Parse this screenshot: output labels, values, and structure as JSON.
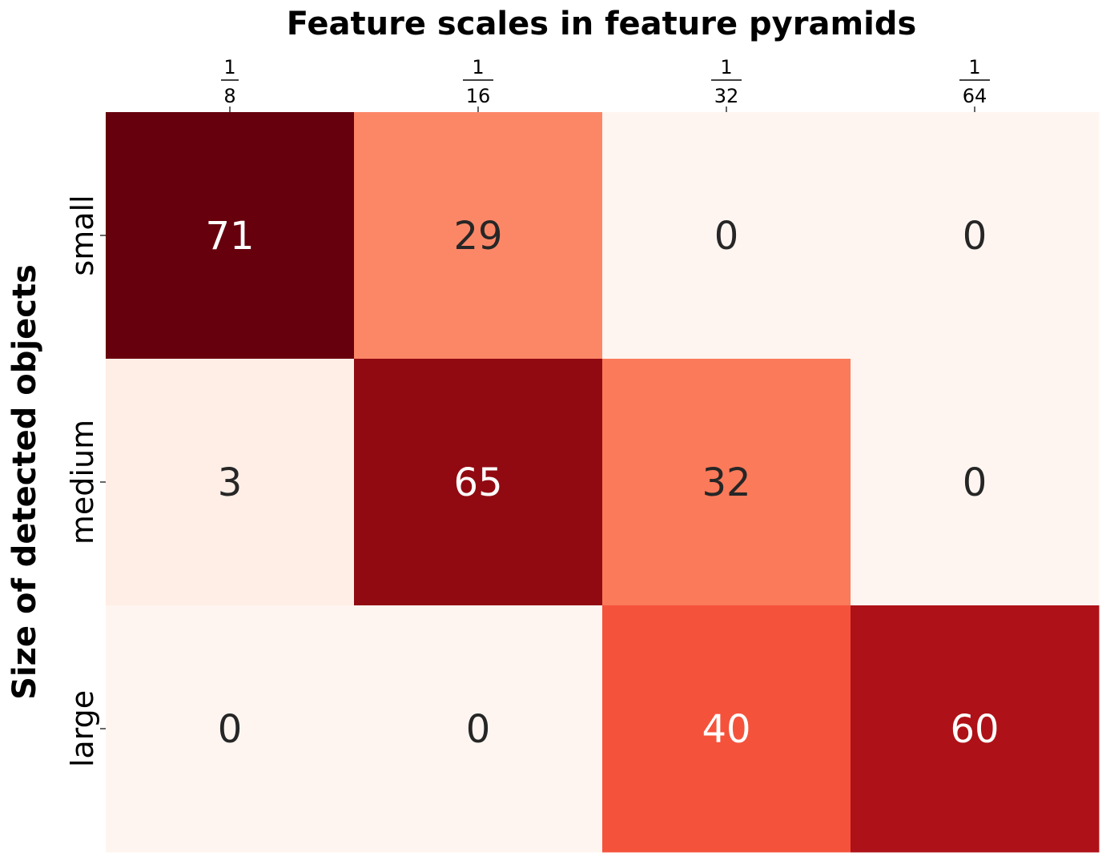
{
  "chart_data": {
    "type": "heatmap",
    "title": "Feature scales in feature pyramids",
    "ylabel": "Size of detected objects",
    "xlabel": "",
    "x_tick_labels": [
      {
        "numerator": "1",
        "denominator": "8"
      },
      {
        "numerator": "1",
        "denominator": "16"
      },
      {
        "numerator": "1",
        "denominator": "32"
      },
      {
        "numerator": "1",
        "denominator": "64"
      }
    ],
    "y_tick_labels": [
      "small",
      "medium",
      "large"
    ],
    "values": [
      [
        71,
        29,
        0,
        0
      ],
      [
        3,
        65,
        32,
        0
      ],
      [
        0,
        0,
        40,
        60
      ]
    ],
    "value_range": [
      0,
      71
    ],
    "colormap": "Reds",
    "x_axis_position": "top",
    "grid": false,
    "colorbar": false
  }
}
